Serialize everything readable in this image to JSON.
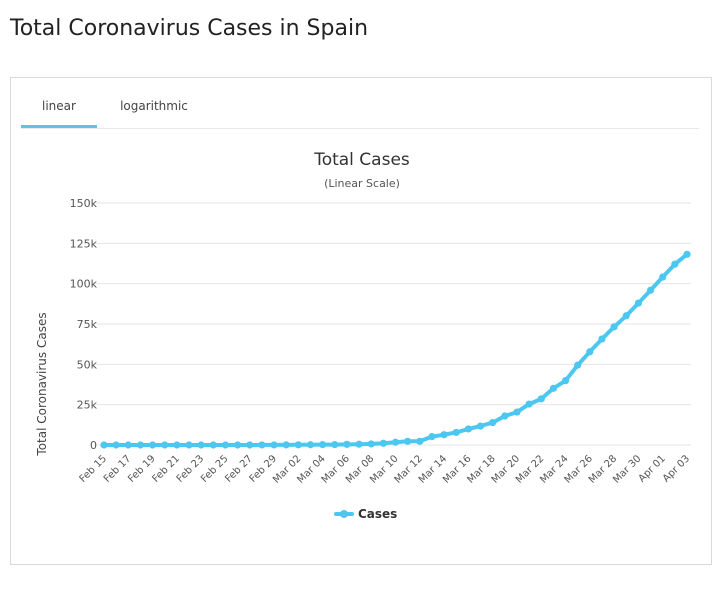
{
  "page": {
    "title": "Total Coronavirus Cases in Spain"
  },
  "tabs": [
    {
      "label": "linear",
      "active": true
    },
    {
      "label": "logarithmic",
      "active": false
    }
  ],
  "colors": {
    "series": "#4cc7f0",
    "tab_active": "#5bc4e8",
    "grid": "#e6e6e6"
  },
  "chart_data": {
    "type": "line",
    "title": "Total Cases",
    "subtitle": "(Linear Scale)",
    "ylabel": "Total Coronavirus Cases",
    "xlabel": "",
    "ylim": [
      0,
      150000
    ],
    "yticks": [
      0,
      25000,
      50000,
      75000,
      100000,
      125000,
      150000
    ],
    "ytick_labels": [
      "0",
      "25k",
      "50k",
      "75k",
      "100k",
      "125k",
      "150k"
    ],
    "grid": true,
    "legend": {
      "placement": "bottom",
      "entries": [
        "Cases"
      ]
    },
    "categories": [
      "Feb 15",
      "Feb 16",
      "Feb 17",
      "Feb 18",
      "Feb 19",
      "Feb 20",
      "Feb 21",
      "Feb 22",
      "Feb 23",
      "Feb 24",
      "Feb 25",
      "Feb 26",
      "Feb 27",
      "Feb 28",
      "Feb 29",
      "Mar 01",
      "Mar 02",
      "Mar 03",
      "Mar 04",
      "Mar 05",
      "Mar 06",
      "Mar 07",
      "Mar 08",
      "Mar 09",
      "Mar 10",
      "Mar 11",
      "Mar 12",
      "Mar 13",
      "Mar 14",
      "Mar 15",
      "Mar 16",
      "Mar 17",
      "Mar 18",
      "Mar 19",
      "Mar 20",
      "Mar 21",
      "Mar 22",
      "Mar 23",
      "Mar 24",
      "Mar 25",
      "Mar 26",
      "Mar 27",
      "Mar 28",
      "Mar 29",
      "Mar 30",
      "Mar 31",
      "Apr 01",
      "Apr 02",
      "Apr 03"
    ],
    "x_tick_labels": [
      "Feb 15",
      "Feb 17",
      "Feb 19",
      "Feb 21",
      "Feb 23",
      "Feb 25",
      "Feb 27",
      "Feb 29",
      "Mar 02",
      "Mar 04",
      "Mar 06",
      "Mar 08",
      "Mar 10",
      "Mar 12",
      "Mar 14",
      "Mar 16",
      "Mar 18",
      "Mar 20",
      "Mar 22",
      "Mar 24",
      "Mar 26",
      "Mar 28",
      "Mar 30",
      "Apr 01",
      "Apr 03"
    ],
    "series": [
      {
        "name": "Cases",
        "values": [
          2,
          2,
          2,
          2,
          2,
          2,
          2,
          2,
          2,
          2,
          6,
          13,
          15,
          32,
          45,
          84,
          120,
          165,
          222,
          259,
          400,
          500,
          673,
          1073,
          1695,
          2277,
          2277,
          5232,
          6391,
          7798,
          9942,
          11748,
          13910,
          17963,
          20410,
          25374,
          28603,
          35136,
          39885,
          49515,
          57786,
          65719,
          73235,
          80110,
          87956,
          95923,
          104118,
          112065,
          118181
        ]
      }
    ]
  }
}
